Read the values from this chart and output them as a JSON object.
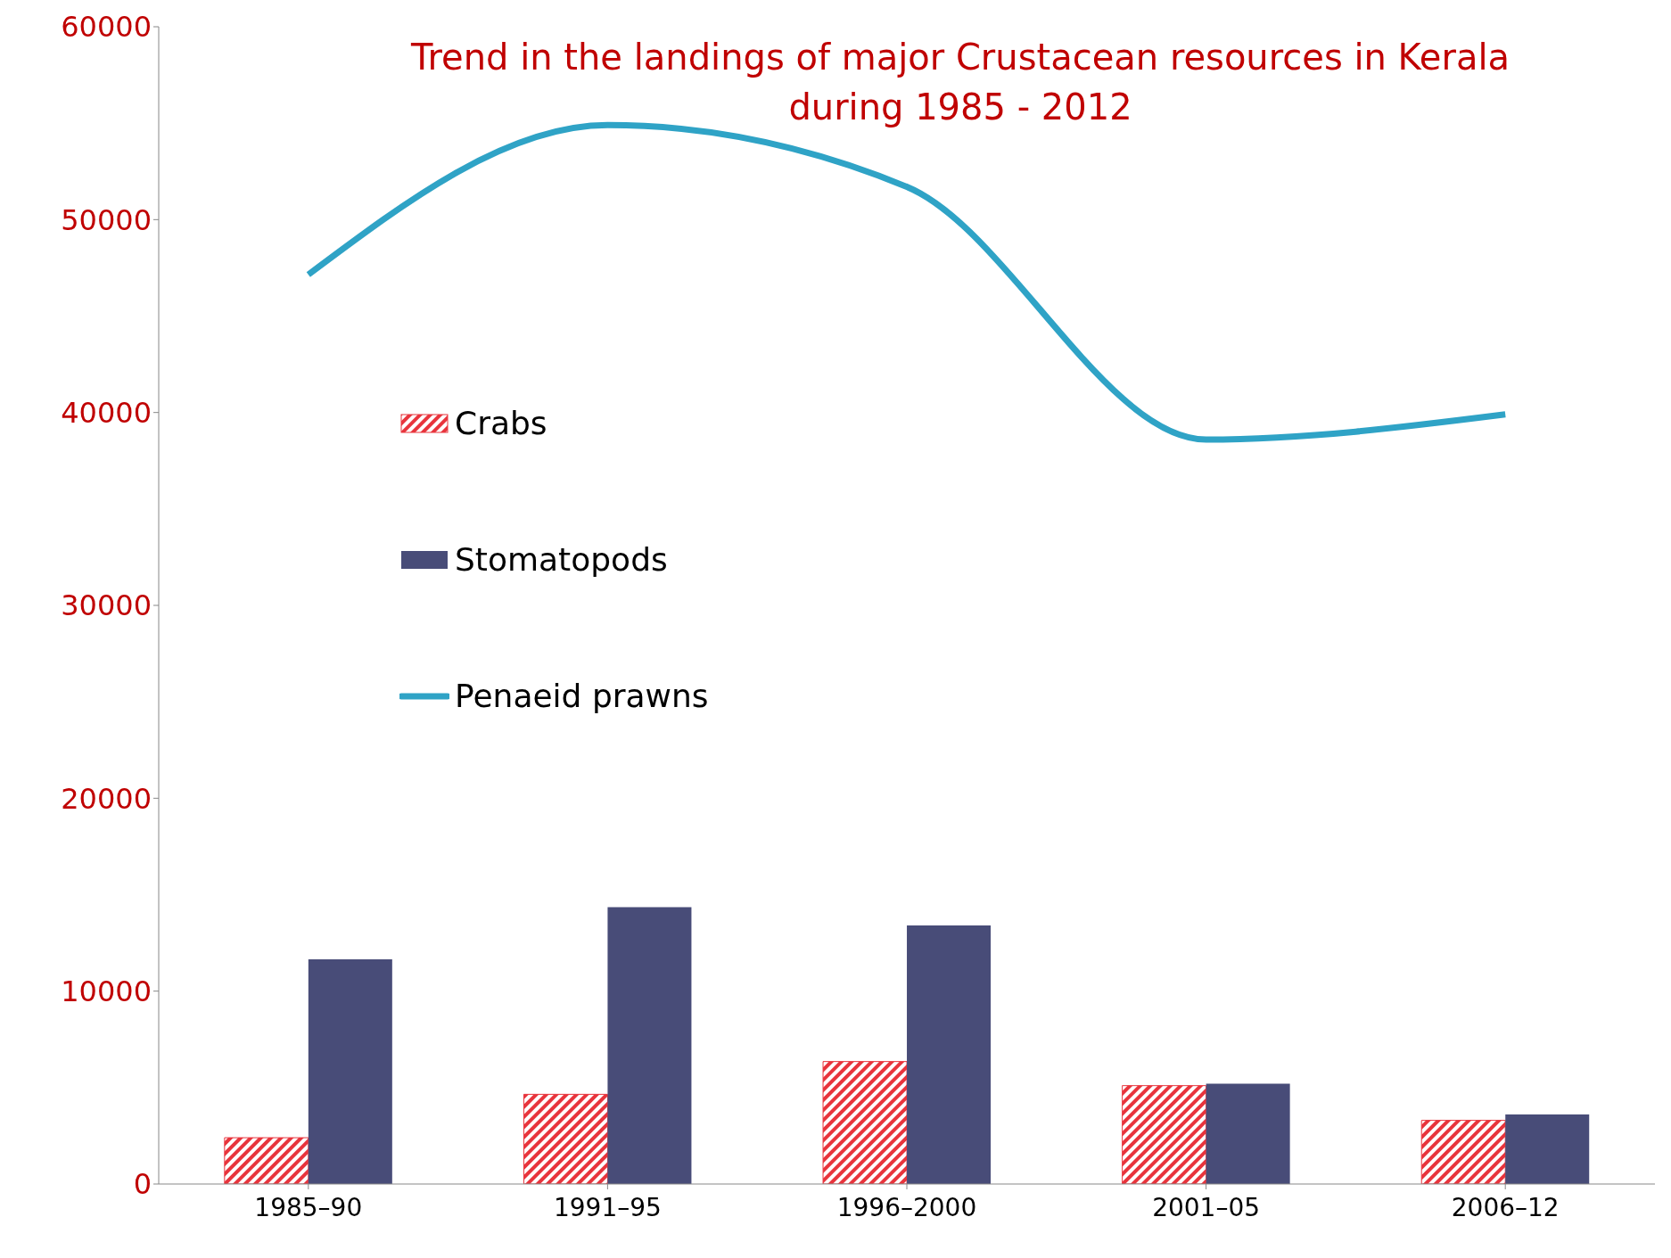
{
  "chart_data": {
    "type": "bar",
    "title": "Trend in the landings of major Crustacean resources in Kerala during 1985 - 2012",
    "categories": [
      "1985–90",
      "1991–95",
      "1996–2000",
      "2001–05",
      "2006–12"
    ],
    "series": [
      {
        "name": "Crabs",
        "color": "#e8343c",
        "values": [
          2400,
          4650,
          6350,
          5100,
          3300
        ]
      },
      {
        "name": "Stomatopods",
        "color": "#484c78",
        "values": [
          11650,
          14350,
          13400,
          5200,
          3600
        ]
      },
      {
        "name": "Penaeid prawns",
        "type": "line",
        "color": "#2fa3c6",
        "values": [
          47150,
          54900,
          51700,
          38600,
          39900
        ]
      }
    ],
    "ylim": [
      0,
      60000
    ],
    "yticks": [
      0,
      10000,
      20000,
      30000,
      40000,
      50000,
      60000
    ],
    "legend": "left",
    "marker": "none"
  }
}
